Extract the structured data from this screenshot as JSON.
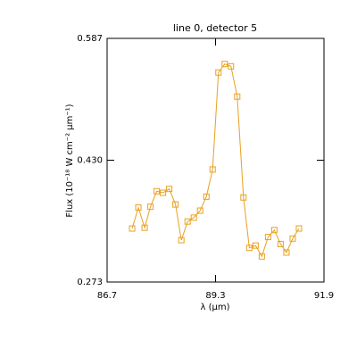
{
  "chart_data": {
    "type": "line",
    "title": "line 0, detector 5",
    "xlabel": "λ (μm)",
    "ylabel": "Flux (10⁻¹⁸ W cm⁻² μm⁻¹)",
    "x": [
      87.3,
      87.45,
      87.6,
      87.74,
      87.89,
      88.04,
      88.19,
      88.34,
      88.48,
      88.63,
      88.78,
      88.93,
      89.08,
      89.23,
      89.37,
      89.52,
      89.67,
      89.82,
      89.97,
      90.11,
      90.26,
      90.41,
      90.56,
      90.71,
      90.86,
      91.0,
      91.15,
      91.3
    ],
    "series": [
      {
        "color": "#e8a020",
        "values": [
          0.342,
          0.369,
          0.343,
          0.37,
          0.39,
          0.388,
          0.393,
          0.373,
          0.327,
          0.351,
          0.356,
          0.365,
          0.383,
          0.418,
          0.543,
          0.554,
          0.551,
          0.512,
          0.382,
          0.317,
          0.32,
          0.306,
          0.331,
          0.34,
          0.322,
          0.311,
          0.329,
          0.342
        ]
      }
    ],
    "xlim": [
      86.7,
      91.9
    ],
    "xticks": [
      86.7,
      89.3,
      91.9
    ],
    "ylim": [
      0.273,
      0.587
    ],
    "yticks": [
      0.273,
      {
        "value": 0.43,
        "label": "0.430"
      },
      0.587
    ],
    "grid": false,
    "marker": "square"
  }
}
